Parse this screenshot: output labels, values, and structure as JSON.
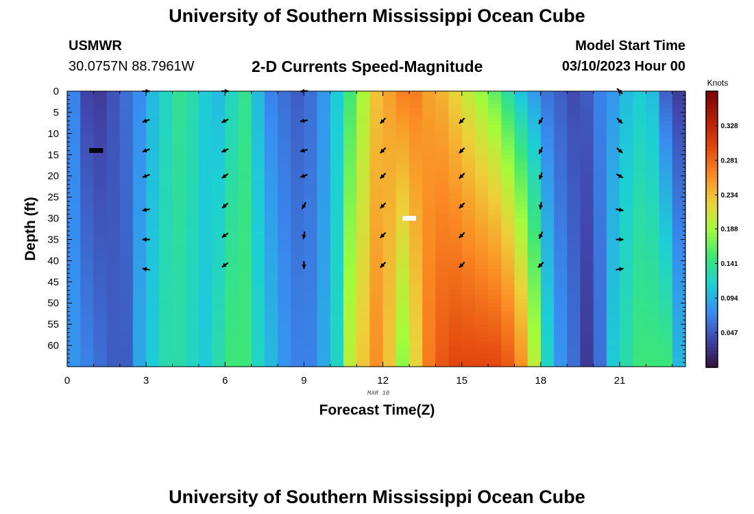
{
  "header": {
    "title_top": "University of Southern Mississippi Ocean Cube",
    "station_id": "USMWR",
    "station_coords": "30.0757N  88.7961W",
    "plot_title": "2-D Currents Speed-Magnitude",
    "model_label": "Model Start Time",
    "model_time": "03/10/2023 Hour 00",
    "title_bottom": "University of Southern Mississippi Ocean Cube"
  },
  "chart_data": {
    "type": "heatmap",
    "title": "2-D Currents Speed-Magnitude",
    "xlabel": "Forecast Time(Z)",
    "ylabel": "Depth (ft)",
    "x_date_label": "MAR 10",
    "xlim": [
      0,
      23.5
    ],
    "ylim": [
      0,
      65
    ],
    "x_ticks": [
      0,
      3,
      6,
      9,
      12,
      15,
      18,
      21
    ],
    "y_ticks": [
      0,
      5,
      10,
      15,
      20,
      25,
      30,
      35,
      40,
      45,
      50,
      55,
      60
    ],
    "colorbar": {
      "label": "Knots",
      "range": [
        0.0,
        0.375
      ],
      "ticks": [
        "0.047",
        "0.094",
        "0.141",
        "0.188",
        "0.234",
        "0.281",
        "0.328"
      ]
    },
    "hours": [
      0.5,
      1,
      1.5,
      2,
      2.5,
      3,
      3.5,
      4,
      4.5,
      5,
      5.5,
      6,
      6.5,
      7,
      7.5,
      8,
      8.5,
      9,
      9.5,
      10,
      10.5,
      11,
      11.5,
      12,
      12.5,
      13,
      13.5,
      14,
      14.5,
      15,
      15.5,
      16,
      16.5,
      17,
      17.5,
      18,
      18.5,
      19,
      19.5,
      20,
      20.5,
      21,
      21.5,
      22,
      22.5,
      23,
      23.5
    ],
    "surface_speed": [
      0.07,
      0.035,
      0.03,
      0.045,
      0.06,
      0.075,
      0.1,
      0.12,
      0.14,
      0.13,
      0.11,
      0.1,
      0.12,
      0.14,
      0.1,
      0.07,
      0.06,
      0.05,
      0.06,
      0.08,
      0.11,
      0.15,
      0.19,
      0.23,
      0.25,
      0.27,
      0.27,
      0.25,
      0.24,
      0.22,
      0.2,
      0.18,
      0.16,
      0.13,
      0.1,
      0.08,
      0.06,
      0.05,
      0.04,
      0.05,
      0.07,
      0.08,
      0.1,
      0.11,
      0.1,
      0.05,
      0.03
    ],
    "bottom_speed": [
      0.08,
      0.07,
      0.06,
      0.05,
      0.05,
      0.09,
      0.11,
      0.13,
      0.13,
      0.12,
      0.11,
      0.13,
      0.15,
      0.15,
      0.12,
      0.1,
      0.08,
      0.07,
      0.07,
      0.09,
      0.12,
      0.2,
      0.23,
      0.26,
      0.23,
      0.18,
      0.22,
      0.27,
      0.29,
      0.3,
      0.3,
      0.3,
      0.3,
      0.29,
      0.26,
      0.2,
      0.12,
      0.08,
      0.06,
      0.03,
      0.06,
      0.11,
      0.13,
      0.15,
      0.15,
      0.15,
      0.1
    ],
    "markers": [
      {
        "hour": 1.1,
        "depth": 14,
        "color": "black"
      },
      {
        "hour": 13.0,
        "depth": 30,
        "color": "white"
      }
    ],
    "vectors": [
      {
        "hour": 3,
        "depth": 0,
        "angle": 0
      },
      {
        "hour": 6,
        "depth": 0,
        "angle": 0
      },
      {
        "hour": 9,
        "depth": 0,
        "angle": 185
      },
      {
        "hour": 3,
        "depth": 7,
        "angle": 200
      },
      {
        "hour": 3,
        "depth": 14,
        "angle": 200
      },
      {
        "hour": 3,
        "depth": 20,
        "angle": 200
      },
      {
        "hour": 3,
        "depth": 28,
        "angle": 190
      },
      {
        "hour": 3,
        "depth": 35,
        "angle": 180
      },
      {
        "hour": 3,
        "depth": 42,
        "angle": 170
      },
      {
        "hour": 6,
        "depth": 7,
        "angle": 205
      },
      {
        "hour": 6,
        "depth": 14,
        "angle": 205
      },
      {
        "hour": 6,
        "depth": 20,
        "angle": 215
      },
      {
        "hour": 6,
        "depth": 27,
        "angle": 220
      },
      {
        "hour": 6,
        "depth": 34,
        "angle": 215
      },
      {
        "hour": 6,
        "depth": 41,
        "angle": 215
      },
      {
        "hour": 9,
        "depth": 7,
        "angle": 190
      },
      {
        "hour": 9,
        "depth": 14,
        "angle": 195
      },
      {
        "hour": 9,
        "depth": 20,
        "angle": 200
      },
      {
        "hour": 9,
        "depth": 27,
        "angle": 240
      },
      {
        "hour": 9,
        "depth": 34,
        "angle": 260
      },
      {
        "hour": 9,
        "depth": 41,
        "angle": 270
      },
      {
        "hour": 12,
        "depth": 7,
        "angle": 225
      },
      {
        "hour": 12,
        "depth": 14,
        "angle": 225
      },
      {
        "hour": 12,
        "depth": 20,
        "angle": 225
      },
      {
        "hour": 12,
        "depth": 27,
        "angle": 225
      },
      {
        "hour": 12,
        "depth": 34,
        "angle": 225
      },
      {
        "hour": 12,
        "depth": 41,
        "angle": 225
      },
      {
        "hour": 15,
        "depth": 7,
        "angle": 225
      },
      {
        "hour": 15,
        "depth": 14,
        "angle": 225
      },
      {
        "hour": 15,
        "depth": 20,
        "angle": 225
      },
      {
        "hour": 15,
        "depth": 27,
        "angle": 225
      },
      {
        "hour": 15,
        "depth": 34,
        "angle": 225
      },
      {
        "hour": 15,
        "depth": 41,
        "angle": 225
      },
      {
        "hour": 18,
        "depth": 7,
        "angle": 240
      },
      {
        "hour": 18,
        "depth": 14,
        "angle": 245
      },
      {
        "hour": 18,
        "depth": 20,
        "angle": 250
      },
      {
        "hour": 18,
        "depth": 27,
        "angle": 260
      },
      {
        "hour": 18,
        "depth": 34,
        "angle": 245
      },
      {
        "hour": 18,
        "depth": 41,
        "angle": 225
      },
      {
        "hour": 21,
        "depth": 0,
        "angle": 315
      },
      {
        "hour": 21,
        "depth": 7,
        "angle": 315
      },
      {
        "hour": 21,
        "depth": 14,
        "angle": 320
      },
      {
        "hour": 21,
        "depth": 20,
        "angle": 330
      },
      {
        "hour": 21,
        "depth": 28,
        "angle": 350
      },
      {
        "hour": 21,
        "depth": 35,
        "angle": 0
      },
      {
        "hour": 21,
        "depth": 42,
        "angle": 10
      }
    ]
  }
}
